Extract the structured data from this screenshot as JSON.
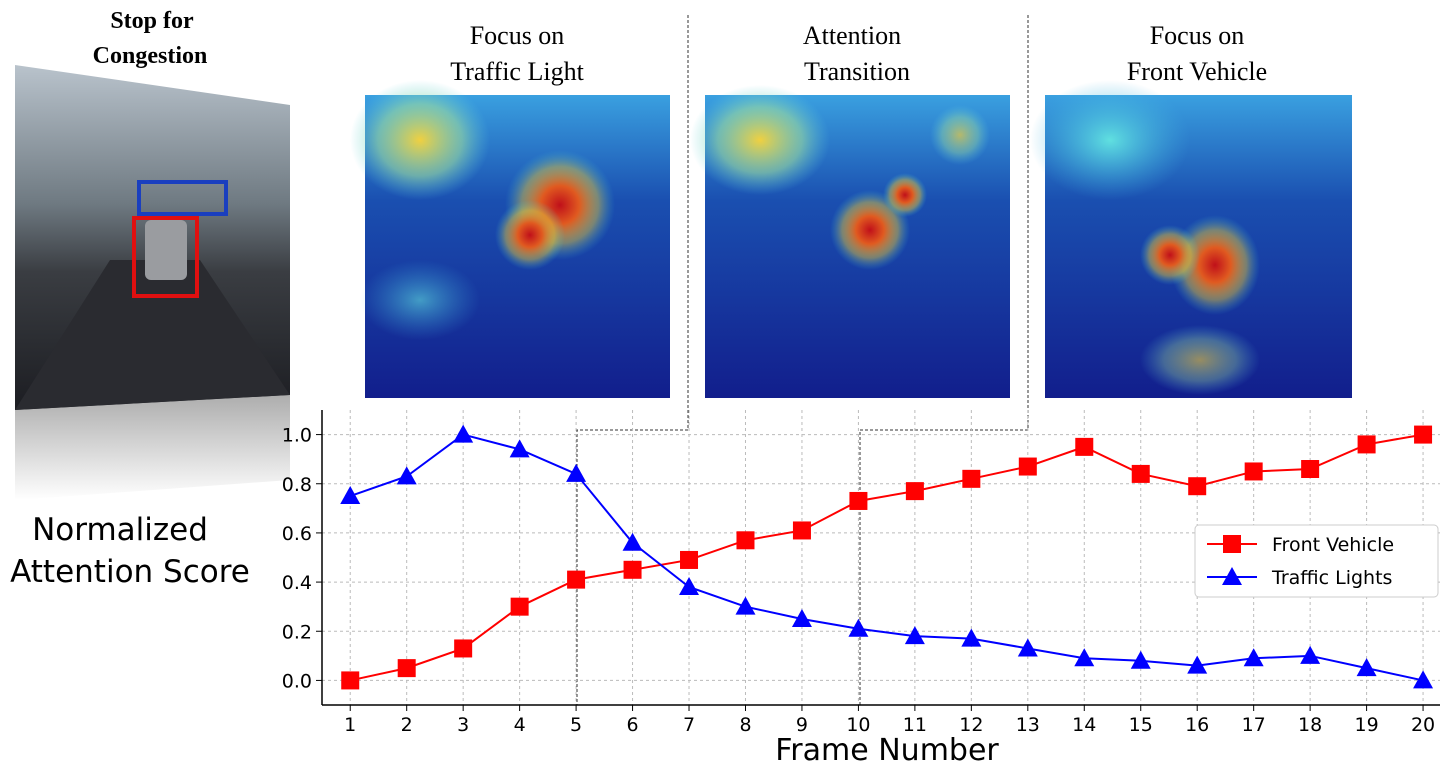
{
  "chart_data": {
    "type": "line",
    "side_title": [
      "Stop for",
      "Congestion"
    ],
    "panel_titles": [
      [
        "Focus on",
        "Traffic Light"
      ],
      [
        "Attention",
        "Transition"
      ],
      [
        "Focus on",
        "Front Vehicle"
      ]
    ],
    "ylabel": [
      "Normalized",
      "Attention Score"
    ],
    "xlabel": "Frame Number",
    "x": [
      1,
      2,
      3,
      4,
      5,
      6,
      7,
      8,
      9,
      10,
      11,
      12,
      13,
      14,
      15,
      16,
      17,
      18,
      19,
      20
    ],
    "series": [
      {
        "name": "Front Vehicle",
        "color": "#ff0000",
        "marker": "square",
        "values": [
          0,
          0.05,
          0.13,
          0.3,
          0.41,
          0.45,
          0.49,
          0.57,
          0.61,
          0.73,
          0.77,
          0.82,
          0.87,
          0.95,
          0.84,
          0.79,
          0.85,
          0.86,
          0.96,
          1.0
        ]
      },
      {
        "name": "Traffic Lights",
        "color": "#0000ff",
        "marker": "triangle",
        "values": [
          0.75,
          0.83,
          1.0,
          0.94,
          0.84,
          0.56,
          0.38,
          0.3,
          0.25,
          0.21,
          0.18,
          0.17,
          0.13,
          0.09,
          0.08,
          0.06,
          0.09,
          0.1,
          0.05,
          0.0
        ]
      }
    ],
    "xlim": [
      0.5,
      20.3
    ],
    "xticks": [
      1,
      2,
      3,
      4,
      5,
      6,
      7,
      8,
      9,
      10,
      11,
      12,
      13,
      14,
      15,
      16,
      17,
      18,
      19,
      20
    ],
    "ylim": [
      -0.1,
      1.1
    ],
    "yticks": [
      {
        "value": 0,
        "label": "0.0"
      },
      {
        "value": 0.2,
        "label": "0.2"
      },
      {
        "value": 0.4,
        "label": "0.4"
      },
      {
        "value": 0.6,
        "label": "0.6"
      },
      {
        "value": 0.8,
        "label": "0.8"
      },
      {
        "value": 1.0,
        "label": "1.0"
      }
    ],
    "grid": true,
    "legend": "right"
  }
}
